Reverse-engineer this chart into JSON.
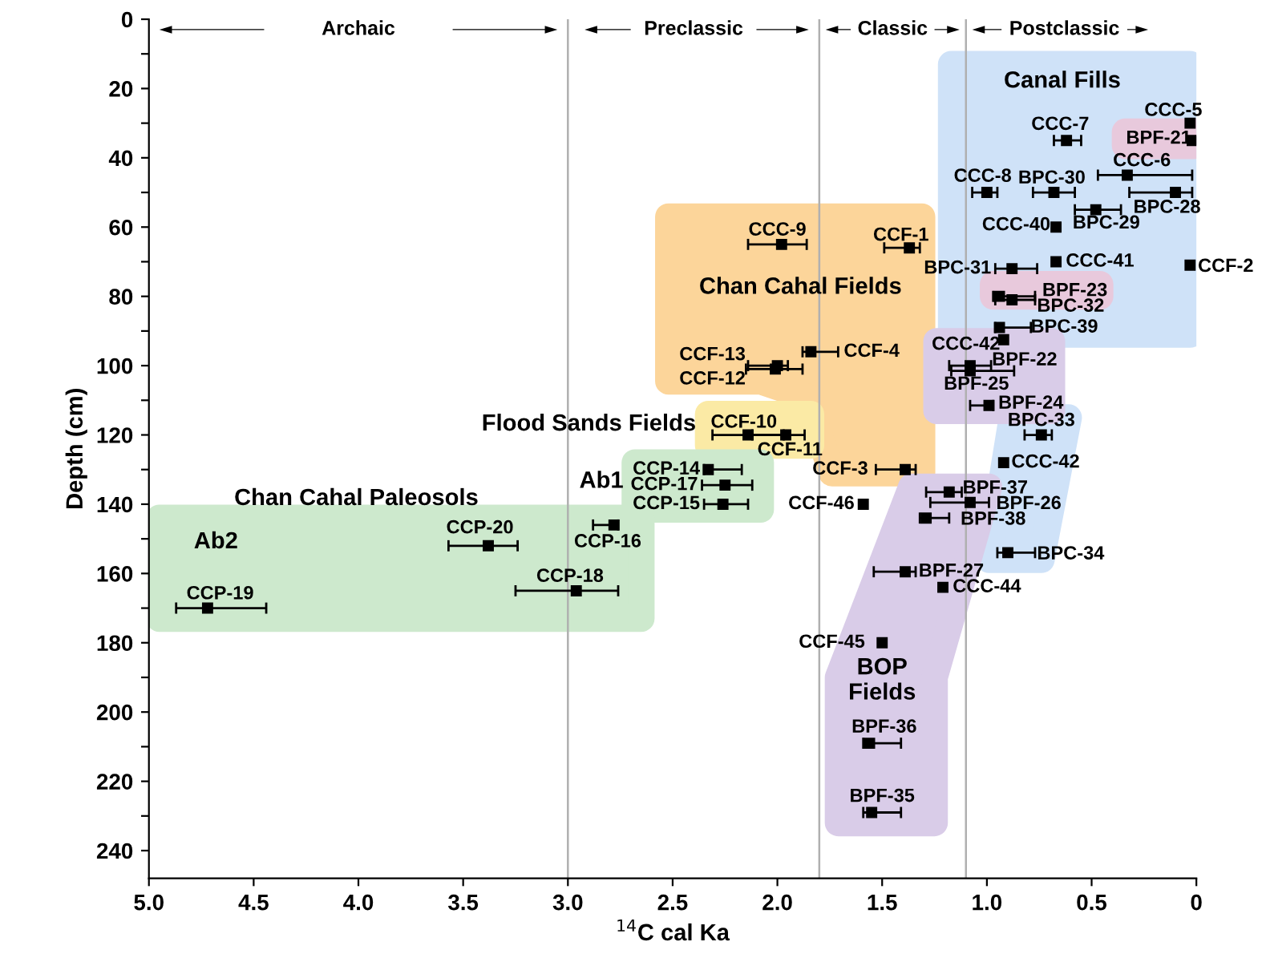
{
  "chart_data": {
    "type": "scatter",
    "xlabel": "$^{14}$C cal Ka",
    "ylabel": "Depth (cm)",
    "xlim": [
      5.0,
      0.0
    ],
    "ylim": [
      248,
      0
    ],
    "xticks": [
      {
        "value": 5.0,
        "label": "5.0"
      },
      {
        "value": 4.5,
        "label": "4.5"
      },
      {
        "value": 4.0,
        "label": "4.0"
      },
      {
        "value": 3.5,
        "label": "3.5"
      },
      {
        "value": 3.0,
        "label": "3.0"
      },
      {
        "value": 2.5,
        "label": "2.5"
      },
      {
        "value": 2.0,
        "label": "2.0"
      },
      {
        "value": 1.5,
        "label": "1.5"
      },
      {
        "value": 1.0,
        "label": "1.0"
      },
      {
        "value": 0.5,
        "label": "0.5"
      },
      0
    ],
    "yticks": [
      0,
      {
        "value": 10,
        "label": null
      },
      20,
      {
        "value": 30,
        "label": null
      },
      40,
      {
        "value": 50,
        "label": null
      },
      60,
      {
        "value": 70,
        "label": null
      },
      80,
      {
        "value": 90,
        "label": null
      },
      100,
      {
        "value": 110,
        "label": null
      },
      120,
      {
        "value": 130,
        "label": null
      },
      140,
      {
        "value": 150,
        "label": null
      },
      160,
      {
        "value": 170,
        "label": null
      },
      180,
      {
        "value": 190,
        "label": null
      },
      200,
      {
        "value": 210,
        "label": null
      },
      220,
      {
        "value": 230,
        "label": null
      },
      240
    ],
    "grid": false,
    "marker": "square",
    "series": [
      {
        "color": "#000000",
        "x": [
          4.72,
          3.38,
          2.96,
          2.78,
          2.33,
          2.25,
          2.26,
          1.98,
          1.37,
          1.84,
          2.0,
          2.01,
          2.14,
          1.96,
          1.39,
          0.03,
          0.02,
          0.62,
          0.33,
          0.1,
          1.0,
          0.68,
          0.48,
          0.67,
          0.67,
          0.88,
          0.03,
          0.94,
          0.88,
          0.94,
          0.92,
          1.08,
          1.08,
          0.99,
          0.74,
          0.92,
          1.59,
          1.18,
          1.08,
          1.29,
          0.9,
          1.39,
          1.21,
          1.5,
          1.56,
          1.55
        ],
        "values": [
          170,
          152,
          165,
          146,
          130,
          134.5,
          140,
          65,
          66,
          96,
          100,
          101,
          120,
          120,
          130,
          30,
          35,
          35,
          45,
          50,
          50,
          50,
          55,
          60,
          70,
          72,
          71,
          80,
          81,
          89,
          92.5,
          100,
          101.5,
          111.5,
          120,
          128,
          140,
          136.5,
          139.5,
          144,
          154,
          159.5,
          164,
          180,
          209,
          229
        ],
        "xerrors": [
          [
            4.44,
            4.87
          ],
          [
            3.24,
            3.57
          ],
          [
            2.76,
            3.25
          ],
          [
            2.76,
            2.88
          ],
          [
            2.17,
            2.35
          ],
          [
            2.12,
            2.36
          ],
          [
            2.14,
            2.35
          ],
          [
            1.86,
            2.14
          ],
          [
            1.32,
            1.49
          ],
          [
            1.71,
            1.88
          ],
          [
            1.95,
            2.14
          ],
          [
            1.88,
            2.15
          ],
          [
            1.97,
            2.31
          ],
          [
            1.87,
            2.12
          ],
          [
            1.34,
            1.53
          ],
          null,
          null,
          [
            0.55,
            0.68
          ],
          [
            0.02,
            0.47
          ],
          [
            0.02,
            0.32
          ],
          [
            0.95,
            1.07
          ],
          [
            0.58,
            0.78
          ],
          [
            0.36,
            0.58
          ],
          null,
          null,
          [
            0.76,
            0.96
          ],
          null,
          [
            0.77,
            0.97
          ],
          [
            0.77,
            0.96
          ],
          [
            0.79,
            0.96
          ],
          null,
          [
            0.98,
            1.18
          ],
          [
            0.87,
            1.17
          ],
          [
            0.97,
            1.08
          ],
          [
            0.69,
            0.82
          ],
          null,
          null,
          [
            1.12,
            1.29
          ],
          [
            0.99,
            1.27
          ],
          [
            1.18,
            1.32
          ],
          [
            0.77,
            0.95
          ],
          [
            1.34,
            1.54
          ],
          null,
          null,
          [
            1.41,
            1.59
          ],
          [
            1.41,
            1.59
          ]
        ]
      }
    ],
    "ref_lines": [
      {
        "axis": "x",
        "value": 3.0,
        "color": "#b0b0b0"
      },
      {
        "axis": "x",
        "value": 1.8,
        "color": "#b0b0b0"
      },
      {
        "axis": "x",
        "value": 1.1,
        "color": "#b0b0b0"
      }
    ],
    "annotations": [
      "CCP-19",
      "CCP-20",
      "CCP-18",
      "CCP-16",
      "CCP-14",
      "CCP-17",
      "CCP-15",
      "CCC-9",
      "CCF-1",
      "CCF-4",
      "CCF-13",
      "CCF-12",
      "CCF-10",
      "CCF-11",
      "CCF-3",
      "CCC-5",
      "BPF-21",
      "CCC-7",
      "CCC-6",
      "BPC-28",
      "CCC-8",
      "BPC-30",
      "BPC-29",
      "CCC-40",
      "CCC-41",
      "BPC-31",
      "CCF-2",
      "BPF-23",
      "BPC-32",
      "BPC-39",
      "CCC-42",
      "BPF-22",
      "BPF-25",
      "BPF-24",
      "BPC-33",
      "CCC-42",
      "CCF-46",
      "BPF-37",
      "BPF-26",
      "BPF-38",
      "BPC-34",
      "BPF-27",
      "CCC-44",
      "CCF-45",
      "BPF-36",
      "BPF-35",
      "Canal Fills",
      "Chan Cahal Fields",
      "Flood Sands Fields",
      "Ab1",
      "Ab2",
      "Chan Cahal Paleosols",
      "BOP\nFields",
      "Archaic",
      "Preclassic",
      "Classic",
      "Postclassic"
    ]
  }
}
